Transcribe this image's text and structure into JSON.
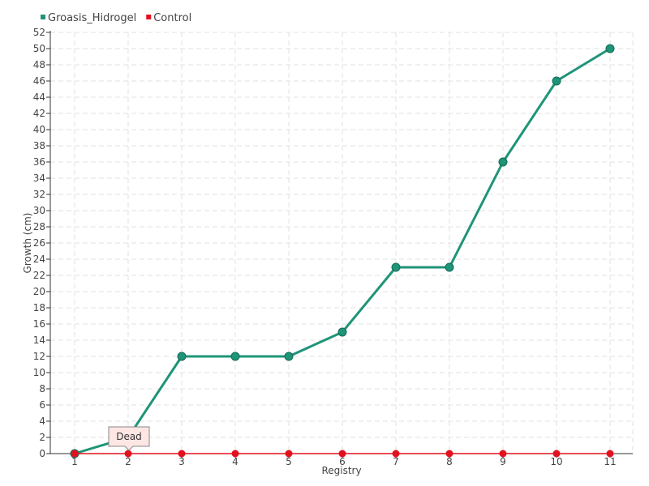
{
  "chart_data": {
    "type": "line",
    "title": "",
    "xlabel": "Registry",
    "ylabel": "Growth (cm)",
    "categories": [
      "1",
      "2",
      "3",
      "4",
      "5",
      "6",
      "7",
      "8",
      "9",
      "10",
      "11"
    ],
    "ylim": [
      0,
      52
    ],
    "ytick_step": 2,
    "grid": true,
    "legend_position": "top-left",
    "series": [
      {
        "name": "Groasis_Hidrogel",
        "color": "#1f9478",
        "values": [
          0,
          2,
          12,
          12,
          12,
          15,
          23,
          23,
          36,
          46,
          50
        ]
      },
      {
        "name": "Control",
        "color": "#e3111e",
        "values": [
          0,
          0,
          0,
          0,
          0,
          0,
          0,
          0,
          0,
          0,
          0
        ]
      }
    ],
    "annotation": {
      "text": "Dead",
      "series": "Control",
      "category": "2"
    }
  }
}
